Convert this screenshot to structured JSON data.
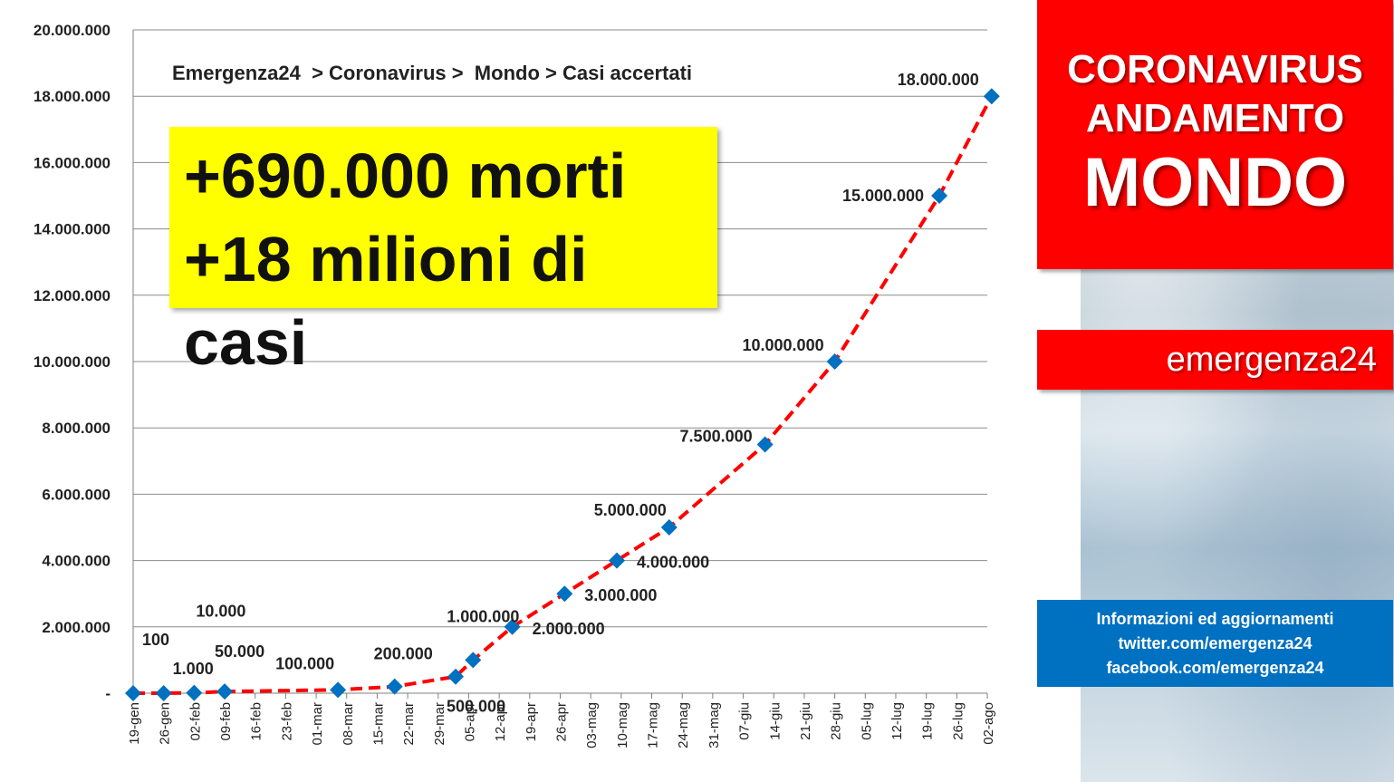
{
  "header": {
    "line1": "CORONAVIRUS",
    "line2": "ANDAMENTO",
    "line3": "MONDO",
    "brand": "emergenza24"
  },
  "info": {
    "line1": "Informazioni ed aggiornamenti",
    "line2": "twitter.com/emergenza24",
    "line3": "facebook.com/emergenza24"
  },
  "highlight": {
    "line1": "+690.000 morti",
    "line2": "+18 milioni di casi"
  },
  "colors": {
    "accent_red": "#ff0000",
    "info_blue": "#0070c0",
    "highlight_yellow": "#ffff00",
    "marker_blue": "#0070c0",
    "trend_red": "#ff0000"
  },
  "chart_data": {
    "type": "scatter",
    "title": "Emergenza24  > Coronavirus >  Mondo > Casi accertati",
    "xlabel": "",
    "ylabel": "",
    "ylim": [
      0,
      20000000
    ],
    "y_ticks": [
      "-",
      "2.000.000",
      "4.000.000",
      "6.000.000",
      "8.000.000",
      "10.000.000",
      "12.000.000",
      "14.000.000",
      "16.000.000",
      "18.000.000",
      "20.000.000"
    ],
    "x_ticks": [
      "19-gen",
      "26-gen",
      "02-feb",
      "09-feb",
      "16-feb",
      "23-feb",
      "01-mar",
      "08-mar",
      "15-mar",
      "22-mar",
      "29-mar",
      "05-apr",
      "12-apr",
      "19-apr",
      "26-apr",
      "03-mag",
      "10-mag",
      "17-mag",
      "24-mag",
      "31-mag",
      "07-giu",
      "14-giu",
      "21-giu",
      "28-giu",
      "05-lug",
      "12-lug",
      "19-lug",
      "26-lug",
      "02-ago"
    ],
    "grid": true,
    "trendline": "dashed red",
    "series": [
      {
        "points": [
          {
            "x": "19-gen",
            "y": 100,
            "label": "100"
          },
          {
            "x": "26-gen",
            "y": 1000,
            "label": "1.000"
          },
          {
            "x": "02-feb",
            "y": 10000,
            "label": "10.000"
          },
          {
            "x": "09-feb",
            "y": 50000,
            "label": "50.000"
          },
          {
            "x": "06-mar",
            "y": 100000,
            "label": "100.000"
          },
          {
            "x": "19-mar",
            "y": 200000,
            "label": "200.000"
          },
          {
            "x": "02-apr",
            "y": 500000,
            "label": "500.000"
          },
          {
            "x": "06-apr",
            "y": 1000000,
            "label": "1.000.000"
          },
          {
            "x": "15-apr",
            "y": 2000000,
            "label": "2.000.000"
          },
          {
            "x": "27-apr",
            "y": 3000000,
            "label": "3.000.000"
          },
          {
            "x": "09-mag",
            "y": 4000000,
            "label": "4.000.000"
          },
          {
            "x": "21-mag",
            "y": 5000000,
            "label": "5.000.000"
          },
          {
            "x": "12-giu",
            "y": 7500000,
            "label": "7.500.000"
          },
          {
            "x": "28-giu",
            "y": 10000000,
            "label": "10.000.000"
          },
          {
            "x": "22-lug",
            "y": 15000000,
            "label": "15.000.000"
          },
          {
            "x": "03-ago",
            "y": 18000000,
            "label": "18.000.000"
          }
        ]
      }
    ]
  }
}
